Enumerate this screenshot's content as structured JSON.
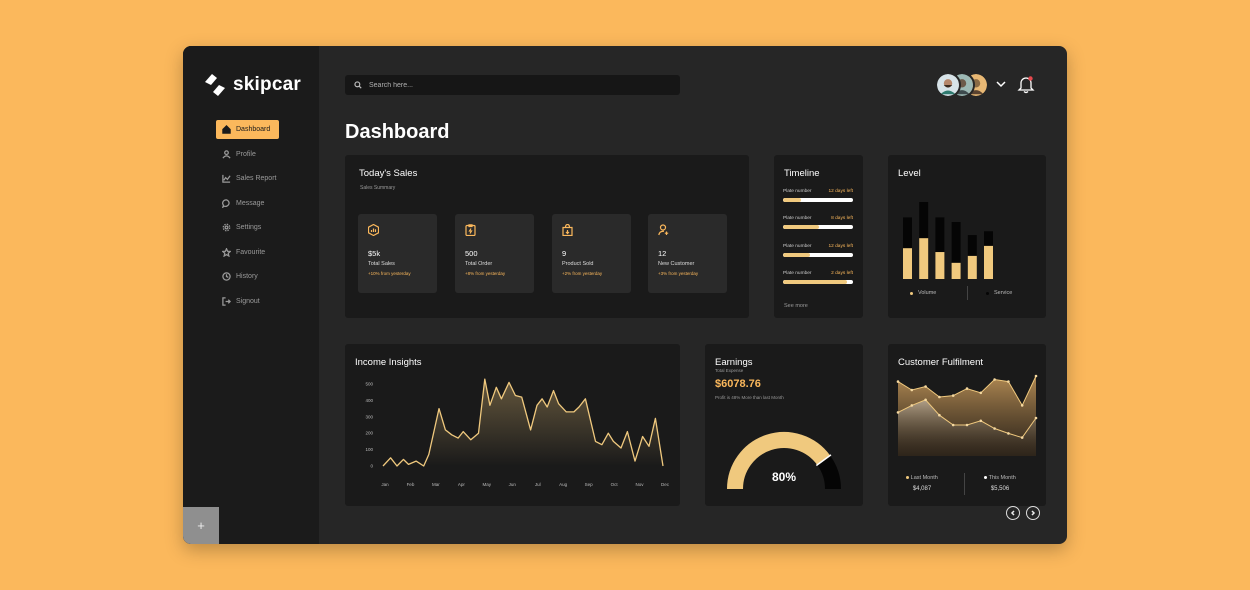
{
  "app": {
    "name": "skipcar"
  },
  "sidebar": {
    "items": [
      {
        "label": "Dashboard",
        "icon": "home-icon"
      },
      {
        "label": "Profile",
        "icon": "user-icon"
      },
      {
        "label": "Sales Report",
        "icon": "chart-icon"
      },
      {
        "label": "Message",
        "icon": "message-icon"
      },
      {
        "label": "Settings",
        "icon": "gear-icon"
      },
      {
        "label": "Favourite",
        "icon": "star-icon"
      },
      {
        "label": "History",
        "icon": "history-icon"
      },
      {
        "label": "Signout",
        "icon": "signout-icon"
      }
    ],
    "add_label": "+"
  },
  "header": {
    "search_placeholder": "Search here...",
    "title": "Dashboard"
  },
  "sales": {
    "title": "Today's Sales",
    "subtitle": "Sales Summary",
    "stats": [
      {
        "value": "$5k",
        "label": "Total Sales",
        "change": "+10% from yesterday"
      },
      {
        "value": "500",
        "label": "Total Order",
        "change": "+8% from yesterday"
      },
      {
        "value": "9",
        "label": "Product Sold",
        "change": "+2% from yesterday"
      },
      {
        "value": "12",
        "label": "New Customer",
        "change": "+3% from yesterday"
      }
    ]
  },
  "timeline": {
    "title": "Timeline",
    "rows": [
      {
        "label": "Plate number",
        "days": "12 days left",
        "progress": 0.25
      },
      {
        "label": "Plate number",
        "days": "8 days left",
        "progress": 0.52
      },
      {
        "label": "Plate number",
        "days": "12 days left",
        "progress": 0.38
      },
      {
        "label": "Plate number",
        "days": "2 days left",
        "progress": 0.92
      }
    ],
    "see_more": "See more"
  },
  "level": {
    "title": "Level",
    "legend": [
      "Volume",
      "Service"
    ],
    "colors": {
      "volume": "#F0C97E",
      "service": "#050505"
    },
    "bars": [
      {
        "volume": 0.4,
        "total": 0.8
      },
      {
        "volume": 0.53,
        "total": 1.0
      },
      {
        "volume": 0.35,
        "total": 0.8
      },
      {
        "volume": 0.21,
        "total": 0.74
      },
      {
        "volume": 0.3,
        "total": 0.57
      },
      {
        "volume": 0.43,
        "total": 0.62
      }
    ]
  },
  "income": {
    "title": "Income Insights",
    "chart_data": {
      "type": "line",
      "ylim": [
        0,
        500
      ],
      "yticks": [
        "500",
        "400",
        "300",
        "200",
        "100",
        "0"
      ],
      "xticks": [
        "Jan",
        "Feb",
        "Mar",
        "Apr",
        "May",
        "Jun",
        "Jul",
        "Aug",
        "Sep",
        "Oct",
        "Nov",
        "Dec"
      ],
      "x": [
        0,
        0.3,
        0.55,
        0.8,
        1,
        1.3,
        1.6,
        1.8,
        2,
        2.2,
        2.45,
        2.7,
        2.95,
        3.15,
        3.45,
        3.75,
        4,
        4.2,
        4.45,
        4.65,
        4.95,
        5.2,
        5.45,
        5.8,
        6.05,
        6.25,
        6.45,
        6.7,
        6.9,
        7.2,
        7.5,
        7.7,
        7.95,
        8.35,
        8.6,
        8.85,
        9.05,
        9.35,
        9.6,
        9.9,
        10.2,
        10.45,
        10.7,
        11
      ],
      "y": [
        0,
        50,
        0,
        40,
        10,
        30,
        0,
        70,
        210,
        350,
        220,
        190,
        170,
        210,
        160,
        200,
        530,
        370,
        480,
        410,
        510,
        430,
        420,
        220,
        370,
        410,
        360,
        460,
        380,
        330,
        330,
        360,
        410,
        150,
        130,
        200,
        150,
        110,
        210,
        30,
        180,
        120,
        290,
        0
      ]
    }
  },
  "earnings": {
    "title": "Earnings",
    "subtitle": "Total Expense",
    "value": "$6078.76",
    "note": "Profit is 48% More than last Month",
    "percent_label": "80%",
    "percent": 0.8
  },
  "fulfilment": {
    "title": "Customer Fulfilment",
    "last_month_label": "Last Month",
    "last_month_value": "$4,087",
    "this_month_label": "This Month",
    "this_month_value": "$5,506",
    "chart_data": {
      "type": "area",
      "series": [
        {
          "name": "Last Month",
          "values": [
            0.92,
            0.8,
            0.85,
            0.7,
            0.72,
            0.82,
            0.76,
            0.95,
            0.92,
            0.58,
            1.0
          ]
        },
        {
          "name": "This Month",
          "values": [
            0.48,
            0.58,
            0.66,
            0.44,
            0.3,
            0.3,
            0.36,
            0.25,
            0.18,
            0.12,
            0.4
          ]
        }
      ]
    }
  }
}
